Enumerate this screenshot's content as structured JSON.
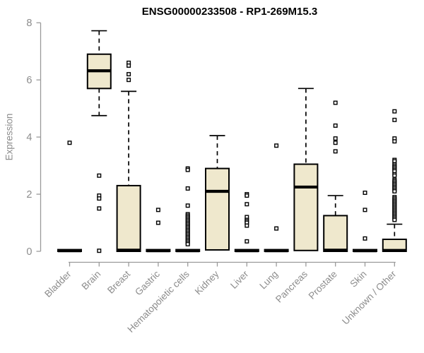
{
  "colors": {
    "background": "#ffffff",
    "box_fill": "#efe8cd",
    "box_border": "#000000",
    "median": "#000000",
    "whisker": "#000000",
    "outlier_stroke": "#000000",
    "outlier_fill": "#ffffff",
    "axis": "#9a9a9a",
    "tick_label": "#8c8c8c",
    "title": "#000000"
  },
  "chart_data": {
    "type": "boxplot",
    "title": "ENSG00000233508 - RP1-269M15.3",
    "ylabel": "Expression",
    "xlabel": "",
    "ylim": [
      0,
      8
    ],
    "yticks": [
      0,
      2,
      4,
      6,
      8
    ],
    "grid": "off",
    "legend": "none",
    "categories": [
      "Bladder",
      "Brain",
      "Breast",
      "Gastric",
      "Hematopoietic cells",
      "Kidney",
      "Liver",
      "Lung",
      "Pancreas",
      "Prostate",
      "Skin",
      "Unknown / Other"
    ],
    "series": [
      {
        "category": "Bladder",
        "whislo": 0,
        "q1": 0,
        "med": 0.02,
        "q3": 0.06,
        "whishi": 0.06,
        "outliers": [
          3.8
        ]
      },
      {
        "category": "Brain",
        "whislo": 4.75,
        "q1": 5.7,
        "med": 6.32,
        "q3": 6.9,
        "whishi": 7.72,
        "outliers": [
          2.65,
          1.95,
          1.85,
          1.5,
          0.02
        ]
      },
      {
        "category": "Breast",
        "whislo": 0,
        "q1": 0,
        "med": 0.04,
        "q3": 2.3,
        "whishi": 5.6,
        "outliers": [
          6.6,
          6.5,
          6.2,
          6.0
        ]
      },
      {
        "category": "Gastric",
        "whislo": 0,
        "q1": 0,
        "med": 0.02,
        "q3": 0.06,
        "whishi": 0.06,
        "outliers": [
          1.45,
          1.0
        ]
      },
      {
        "category": "Hematopoietic cells",
        "whislo": 0,
        "q1": 0,
        "med": 0.02,
        "q3": 0.06,
        "whishi": 0.06,
        "outliers": [
          2.9,
          2.85,
          2.2,
          1.6,
          1.3,
          1.25,
          1.2,
          1.15,
          1.1,
          1.05,
          1.0,
          0.95,
          0.9,
          0.85,
          0.8,
          0.75,
          0.7,
          0.65,
          0.6,
          0.55,
          0.5,
          0.45,
          0.4,
          0.35,
          0.3,
          0.25
        ]
      },
      {
        "category": "Kidney",
        "whislo": 0.05,
        "q1": 0.05,
        "med": 2.1,
        "q3": 2.9,
        "whishi": 4.05,
        "outliers": []
      },
      {
        "category": "Liver",
        "whislo": 0,
        "q1": 0,
        "med": 0.02,
        "q3": 0.06,
        "whishi": 0.06,
        "outliers": [
          2.0,
          1.95,
          1.65,
          1.2,
          1.1,
          1.05,
          1.0,
          0.9,
          0.35
        ]
      },
      {
        "category": "Lung",
        "whislo": 0,
        "q1": 0,
        "med": 0.02,
        "q3": 0.06,
        "whishi": 0.06,
        "outliers": [
          3.7,
          0.8
        ]
      },
      {
        "category": "Pancreas",
        "whislo": 0.03,
        "q1": 0.03,
        "med": 2.25,
        "q3": 3.05,
        "whishi": 5.7,
        "outliers": []
      },
      {
        "category": "Prostate",
        "whislo": 0,
        "q1": 0,
        "med": 0.04,
        "q3": 1.25,
        "whishi": 1.95,
        "outliers": [
          5.2,
          4.4,
          3.95,
          3.8,
          3.5
        ]
      },
      {
        "category": "Skin",
        "whislo": 0,
        "q1": 0,
        "med": 0.02,
        "q3": 0.06,
        "whishi": 0.06,
        "outliers": [
          2.05,
          1.45,
          0.45
        ]
      },
      {
        "category": "Unknown / Other",
        "whislo": 0,
        "q1": 0,
        "med": 0.03,
        "q3": 0.42,
        "whishi": 0.95,
        "outliers": [
          4.9,
          4.6,
          3.95,
          3.85,
          3.2,
          3.15,
          3.05,
          3.0,
          2.95,
          2.9,
          2.85,
          2.8,
          2.7,
          2.65,
          2.5,
          2.45,
          2.4,
          2.35,
          2.3,
          2.25,
          2.2,
          2.15,
          2.1,
          1.9,
          1.85,
          1.8,
          1.75,
          1.7,
          1.65,
          1.6,
          1.55,
          1.5,
          1.45,
          1.4,
          1.35,
          1.3,
          1.25,
          1.2,
          1.15,
          1.1
        ]
      }
    ]
  }
}
